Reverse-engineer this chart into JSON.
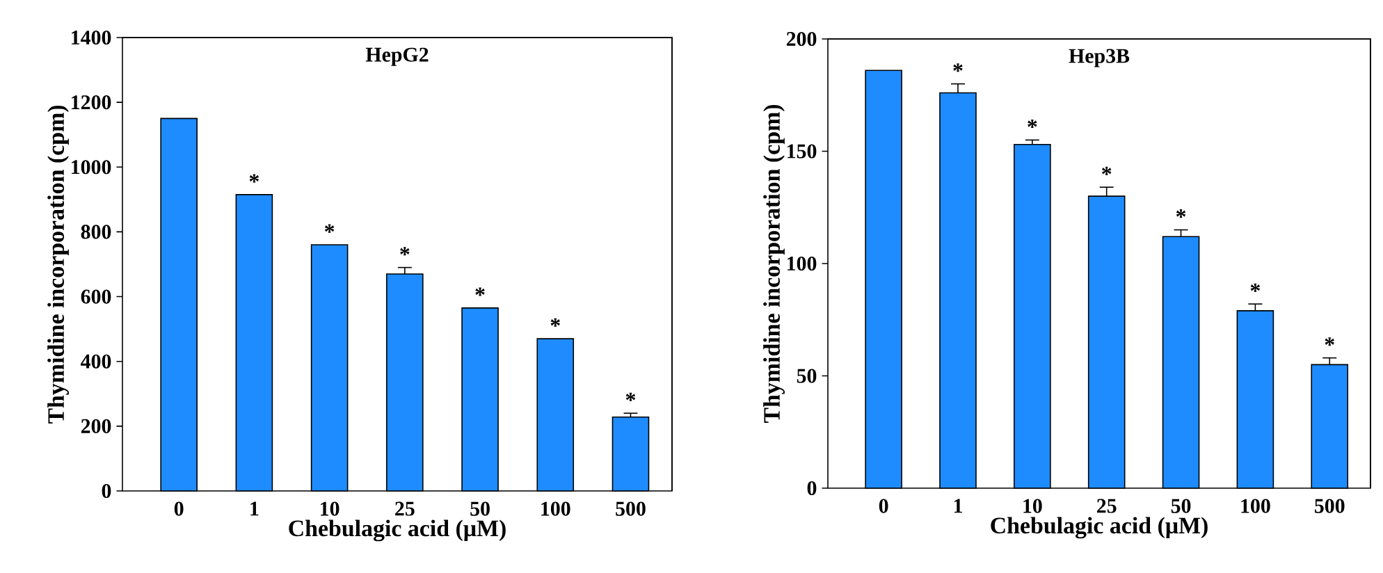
{
  "chart_data": [
    {
      "type": "bar",
      "title": "HepG2",
      "xlabel": "Chebulagic acid (μM)",
      "ylabel": "Thymidine incorporation (cpm)",
      "categories": [
        "0",
        "1",
        "10",
        "25",
        "50",
        "100",
        "500"
      ],
      "values": [
        1150,
        915,
        760,
        670,
        565,
        470,
        228
      ],
      "errors": [
        null,
        null,
        null,
        20,
        null,
        null,
        12
      ],
      "color": "#1e8cff",
      "ylim": [
        0,
        1400
      ],
      "yticks": [
        0,
        200,
        400,
        600,
        800,
        1000,
        1200,
        1400
      ],
      "annotations": [
        {
          "text": "*",
          "x": "1",
          "y": 915
        },
        {
          "text": "*",
          "x": "10",
          "y": 760
        },
        {
          "text": "*",
          "x": "25",
          "y": 670
        },
        {
          "text": "*",
          "x": "50",
          "y": 565
        },
        {
          "text": "*",
          "x": "100",
          "y": 470
        },
        {
          "text": "*",
          "x": "500",
          "y": 228
        }
      ]
    },
    {
      "type": "bar",
      "title": "Hep3B",
      "xlabel": "Chebulagic acid (μM)",
      "ylabel": "Thymidine incorporation (cpm)",
      "categories": [
        "0",
        "1",
        "10",
        "25",
        "50",
        "100",
        "500"
      ],
      "values": [
        186,
        176,
        153,
        130,
        112,
        79,
        55
      ],
      "errors": [
        null,
        4,
        2,
        4,
        3,
        3,
        3
      ],
      "color": "#1e8cff",
      "ylim": [
        0,
        200
      ],
      "yticks": [
        0,
        50,
        100,
        150,
        200
      ],
      "annotations": [
        {
          "text": "*",
          "x": "1",
          "y": 176
        },
        {
          "text": "*",
          "x": "10",
          "y": 153
        },
        {
          "text": "*",
          "x": "25",
          "y": 130
        },
        {
          "text": "*",
          "x": "50",
          "y": 112
        },
        {
          "text": "*",
          "x": "100",
          "y": 79
        },
        {
          "text": "*",
          "x": "500",
          "y": 55
        }
      ]
    }
  ]
}
